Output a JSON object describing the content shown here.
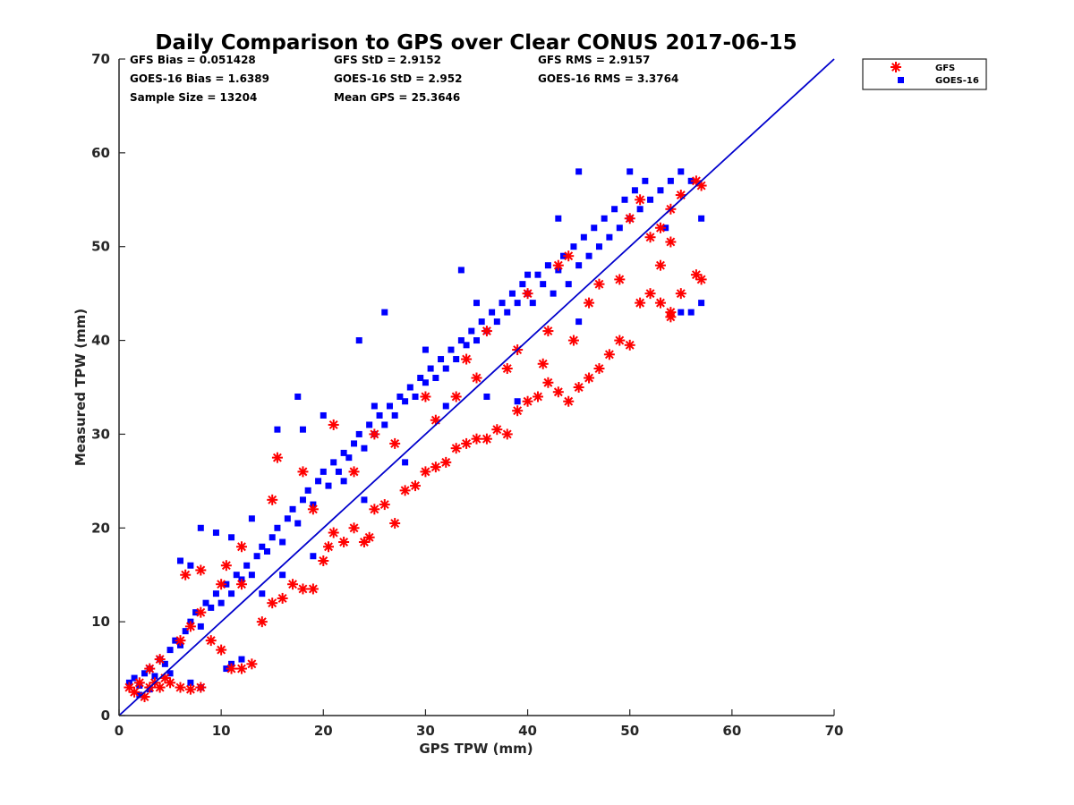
{
  "chart_data": {
    "type": "scatter",
    "title": "Daily Comparison to GPS over Clear CONUS 2017-06-15",
    "xlabel": "GPS TPW (mm)",
    "ylabel": "Measured TPW (mm)",
    "xlim": [
      0,
      70
    ],
    "ylim": [
      0,
      70
    ],
    "xticks": [
      "0",
      "10",
      "20",
      "30",
      "40",
      "50",
      "60",
      "70"
    ],
    "yticks": [
      "0",
      "10",
      "20",
      "30",
      "40",
      "50",
      "60",
      "70"
    ],
    "grid": false,
    "legend_position": "top-right outside",
    "legend": [
      {
        "name": "GFS",
        "marker": "asterisk",
        "color": "#ff0000"
      },
      {
        "name": "GOES-16",
        "marker": "square",
        "color": "#0000ff"
      }
    ],
    "stats": [
      [
        "GFS Bias = 0.051428",
        "GFS StD = 2.9152",
        "GFS RMS = 2.9157"
      ],
      [
        "GOES-16 Bias = 1.6389",
        "GOES-16 StD = 2.952",
        "GOES-16 RMS = 3.3764"
      ],
      [
        "Sample Size = 13204",
        "Mean GPS = 25.3646"
      ]
    ],
    "reference_line": {
      "name": "1:1 line",
      "color": "#0000cc",
      "x": [
        0,
        70
      ],
      "y": [
        0,
        70
      ]
    },
    "series": [
      {
        "name": "GOES-16",
        "marker": "square",
        "color": "#0000ff",
        "points": [
          [
            1.0,
            3.5
          ],
          [
            1.5,
            4.0
          ],
          [
            2.0,
            3.2
          ],
          [
            2.5,
            4.5
          ],
          [
            3.0,
            5.0
          ],
          [
            3.5,
            4.2
          ],
          [
            4.0,
            6.0
          ],
          [
            4.5,
            5.5
          ],
          [
            5.0,
            7.0
          ],
          [
            5.5,
            8.0
          ],
          [
            6.0,
            7.5
          ],
          [
            6.5,
            9.0
          ],
          [
            7.0,
            10.0
          ],
          [
            7.5,
            11.0
          ],
          [
            8.0,
            9.5
          ],
          [
            8.5,
            12.0
          ],
          [
            9.0,
            11.5
          ],
          [
            9.5,
            13.0
          ],
          [
            10.0,
            12.0
          ],
          [
            10.5,
            14.0
          ],
          [
            11.0,
            13.0
          ],
          [
            11.5,
            15.0
          ],
          [
            12.0,
            14.5
          ],
          [
            12.5,
            16.0
          ],
          [
            13.0,
            15.0
          ],
          [
            13.5,
            17.0
          ],
          [
            14.0,
            18.0
          ],
          [
            14.5,
            17.5
          ],
          [
            15.0,
            19.0
          ],
          [
            15.5,
            20.0
          ],
          [
            16.0,
            18.5
          ],
          [
            16.5,
            21.0
          ],
          [
            17.0,
            22.0
          ],
          [
            17.5,
            20.5
          ],
          [
            18.0,
            23.0
          ],
          [
            18.5,
            24.0
          ],
          [
            19.0,
            22.5
          ],
          [
            19.5,
            25.0
          ],
          [
            20.0,
            26.0
          ],
          [
            20.5,
            24.5
          ],
          [
            21.0,
            27.0
          ],
          [
            21.5,
            26.0
          ],
          [
            22.0,
            28.0
          ],
          [
            22.5,
            27.5
          ],
          [
            23.0,
            29.0
          ],
          [
            23.5,
            30.0
          ],
          [
            24.0,
            28.5
          ],
          [
            24.5,
            31.0
          ],
          [
            25.0,
            30.0
          ],
          [
            25.5,
            32.0
          ],
          [
            26.0,
            31.0
          ],
          [
            26.5,
            33.0
          ],
          [
            27.0,
            32.0
          ],
          [
            27.5,
            34.0
          ],
          [
            28.0,
            33.5
          ],
          [
            28.5,
            35.0
          ],
          [
            29.0,
            34.0
          ],
          [
            29.5,
            36.0
          ],
          [
            30.0,
            35.5
          ],
          [
            30.5,
            37.0
          ],
          [
            31.0,
            36.0
          ],
          [
            31.5,
            38.0
          ],
          [
            32.0,
            37.0
          ],
          [
            32.5,
            39.0
          ],
          [
            33.0,
            38.0
          ],
          [
            33.5,
            40.0
          ],
          [
            34.0,
            39.5
          ],
          [
            34.5,
            41.0
          ],
          [
            35.0,
            40.0
          ],
          [
            35.5,
            42.0
          ],
          [
            36.0,
            41.0
          ],
          [
            36.5,
            43.0
          ],
          [
            37.0,
            42.0
          ],
          [
            37.5,
            44.0
          ],
          [
            38.0,
            43.0
          ],
          [
            38.5,
            45.0
          ],
          [
            39.0,
            44.0
          ],
          [
            39.5,
            46.0
          ],
          [
            40.0,
            45.0
          ],
          [
            40.5,
            44.0
          ],
          [
            41.0,
            47.0
          ],
          [
            41.5,
            46.0
          ],
          [
            42.0,
            48.0
          ],
          [
            42.5,
            45.0
          ],
          [
            43.0,
            47.5
          ],
          [
            43.5,
            49.0
          ],
          [
            44.0,
            46.0
          ],
          [
            44.5,
            50.0
          ],
          [
            45.0,
            48.0
          ],
          [
            45.5,
            51.0
          ],
          [
            46.0,
            49.0
          ],
          [
            46.5,
            52.0
          ],
          [
            47.0,
            50.0
          ],
          [
            47.5,
            53.0
          ],
          [
            48.0,
            51.0
          ],
          [
            48.5,
            54.0
          ],
          [
            49.0,
            52.0
          ],
          [
            49.5,
            55.0
          ],
          [
            50.0,
            53.0
          ],
          [
            50.5,
            56.0
          ],
          [
            51.0,
            54.0
          ],
          [
            51.5,
            57.0
          ],
          [
            52.0,
            55.0
          ],
          [
            53.0,
            56.0
          ],
          [
            54.0,
            57.0
          ],
          [
            55.0,
            58.0
          ],
          [
            56.0,
            57.0
          ],
          [
            57.0,
            53.0
          ],
          [
            56.0,
            43.0
          ],
          [
            57.0,
            44.0
          ],
          [
            55.0,
            43.0
          ],
          [
            45.0,
            58.0
          ],
          [
            43.0,
            53.0
          ],
          [
            33.5,
            47.5
          ],
          [
            26.0,
            43.0
          ],
          [
            23.5,
            40.0
          ],
          [
            17.5,
            34.0
          ],
          [
            15.5,
            30.5
          ],
          [
            18.0,
            30.5
          ],
          [
            13.0,
            21.0
          ],
          [
            11.0,
            19.0
          ],
          [
            9.5,
            19.5
          ],
          [
            8.0,
            20.0
          ],
          [
            7.0,
            16.0
          ],
          [
            6.0,
            16.5
          ],
          [
            10.5,
            5.0
          ],
          [
            11.0,
            5.5
          ],
          [
            12.0,
            6.0
          ],
          [
            7.0,
            3.5
          ],
          [
            8.0,
            3.0
          ],
          [
            20.0,
            32.0
          ],
          [
            25.0,
            33.0
          ],
          [
            30.0,
            39.0
          ],
          [
            35.0,
            44.0
          ],
          [
            40.0,
            47.0
          ],
          [
            50.0,
            58.0
          ],
          [
            53.5,
            52.0
          ],
          [
            36.0,
            34.0
          ],
          [
            39.0,
            33.5
          ],
          [
            45.0,
            42.0
          ],
          [
            22.0,
            25.0
          ],
          [
            24.0,
            23.0
          ],
          [
            28.0,
            27.0
          ],
          [
            32.0,
            33.0
          ],
          [
            14.0,
            13.0
          ],
          [
            16.0,
            15.0
          ],
          [
            19.0,
            17.0
          ],
          [
            5.0,
            4.5
          ],
          [
            3.0,
            2.8
          ],
          [
            2.0,
            2.2
          ]
        ]
      },
      {
        "name": "GFS",
        "marker": "asterisk",
        "color": "#ff0000",
        "points": [
          [
            1.0,
            3.0
          ],
          [
            1.5,
            2.5
          ],
          [
            2.0,
            3.5
          ],
          [
            2.5,
            2.0
          ],
          [
            3.0,
            3.0
          ],
          [
            3.5,
            3.5
          ],
          [
            4.0,
            3.0
          ],
          [
            4.5,
            4.0
          ],
          [
            5.0,
            3.5
          ],
          [
            6.0,
            3.0
          ],
          [
            7.0,
            2.8
          ],
          [
            8.0,
            3.0
          ],
          [
            6.5,
            15.0
          ],
          [
            8.0,
            15.5
          ],
          [
            7.0,
            9.5
          ],
          [
            9.0,
            8.0
          ],
          [
            10.0,
            7.0
          ],
          [
            11.0,
            5.0
          ],
          [
            12.0,
            5.0
          ],
          [
            13.0,
            5.5
          ],
          [
            10.5,
            16.0
          ],
          [
            12.0,
            14.0
          ],
          [
            14.0,
            10.0
          ],
          [
            15.0,
            12.0
          ],
          [
            15.5,
            27.5
          ],
          [
            16.0,
            12.5
          ],
          [
            17.0,
            14.0
          ],
          [
            18.0,
            13.5
          ],
          [
            19.0,
            13.5
          ],
          [
            20.0,
            16.5
          ],
          [
            20.5,
            18.0
          ],
          [
            21.0,
            19.5
          ],
          [
            22.0,
            18.5
          ],
          [
            23.0,
            20.0
          ],
          [
            24.0,
            18.5
          ],
          [
            24.5,
            19.0
          ],
          [
            25.0,
            22.0
          ],
          [
            26.0,
            22.5
          ],
          [
            27.0,
            20.5
          ],
          [
            28.0,
            24.0
          ],
          [
            29.0,
            24.5
          ],
          [
            30.0,
            26.0
          ],
          [
            31.0,
            26.5
          ],
          [
            32.0,
            27.0
          ],
          [
            33.0,
            28.5
          ],
          [
            34.0,
            29.0
          ],
          [
            35.0,
            29.5
          ],
          [
            36.0,
            29.5
          ],
          [
            37.0,
            30.5
          ],
          [
            38.0,
            30.0
          ],
          [
            39.0,
            32.5
          ],
          [
            40.0,
            33.5
          ],
          [
            41.0,
            34.0
          ],
          [
            42.0,
            35.5
          ],
          [
            43.0,
            34.5
          ],
          [
            44.0,
            33.5
          ],
          [
            45.0,
            35.0
          ],
          [
            46.0,
            36.0
          ],
          [
            47.0,
            37.0
          ],
          [
            48.0,
            38.5
          ],
          [
            49.0,
            40.0
          ],
          [
            50.0,
            39.5
          ],
          [
            51.0,
            44.0
          ],
          [
            52.0,
            45.0
          ],
          [
            53.0,
            44.0
          ],
          [
            54.0,
            43.0
          ],
          [
            55.0,
            45.0
          ],
          [
            56.5,
            47.0
          ],
          [
            57.0,
            46.5
          ],
          [
            54.0,
            42.5
          ],
          [
            53.0,
            48.0
          ],
          [
            54.0,
            50.5
          ],
          [
            52.0,
            51.0
          ],
          [
            51.0,
            55.0
          ],
          [
            53.0,
            52.0
          ],
          [
            55.0,
            55.5
          ],
          [
            56.5,
            57.0
          ],
          [
            57.0,
            56.5
          ],
          [
            54.0,
            54.0
          ],
          [
            50.0,
            53.0
          ],
          [
            43.0,
            48.0
          ],
          [
            44.0,
            49.0
          ],
          [
            40.0,
            45.0
          ],
          [
            36.0,
            41.0
          ],
          [
            34.0,
            38.0
          ],
          [
            30.0,
            34.0
          ],
          [
            25.0,
            30.0
          ],
          [
            21.0,
            31.0
          ],
          [
            18.0,
            26.0
          ],
          [
            15.0,
            23.0
          ],
          [
            12.0,
            18.0
          ],
          [
            10.0,
            14.0
          ],
          [
            8.0,
            11.0
          ],
          [
            6.0,
            8.0
          ],
          [
            4.0,
            6.0
          ],
          [
            3.0,
            5.0
          ],
          [
            33.0,
            34.0
          ],
          [
            38.0,
            37.0
          ],
          [
            42.0,
            41.0
          ],
          [
            46.0,
            44.0
          ],
          [
            19.0,
            22.0
          ],
          [
            23.0,
            26.0
          ],
          [
            27.0,
            29.0
          ],
          [
            31.0,
            31.5
          ],
          [
            35.0,
            36.0
          ],
          [
            39.0,
            39.0
          ],
          [
            47.0,
            46.0
          ],
          [
            49.0,
            46.5
          ],
          [
            44.5,
            40.0
          ],
          [
            41.5,
            37.5
          ]
        ]
      }
    ]
  }
}
